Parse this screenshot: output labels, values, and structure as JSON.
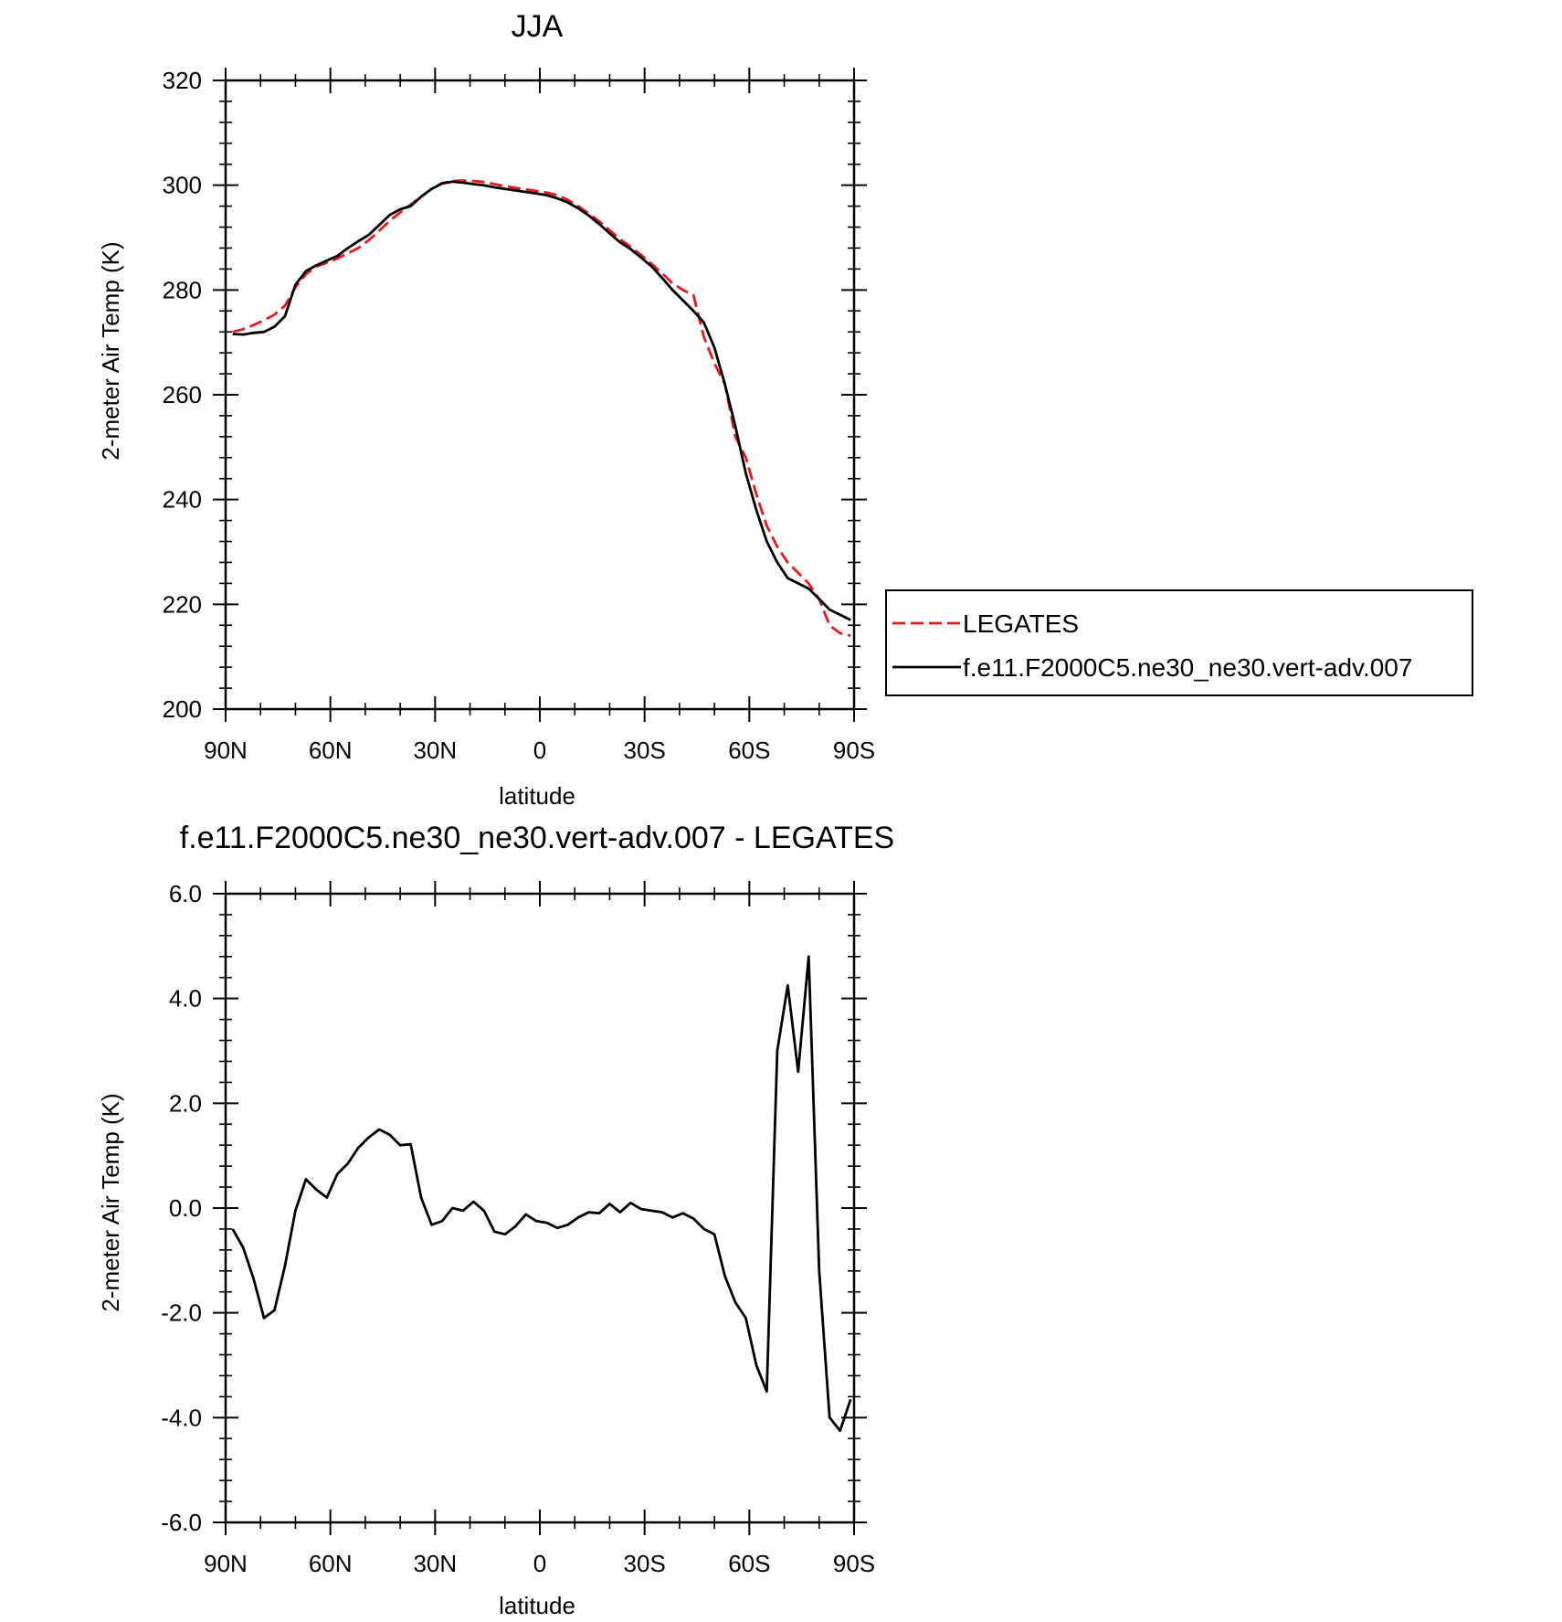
{
  "chart_data": [
    {
      "type": "line",
      "title": "JJA",
      "xlabel": "latitude",
      "ylabel": "2-meter Air Temp (K)",
      "xlim": [
        90,
        -90
      ],
      "ylim": [
        200,
        320
      ],
      "xticks": [
        90,
        60,
        30,
        0,
        -30,
        -60,
        -90
      ],
      "xtick_labels": [
        "90N",
        "60N",
        "30N",
        "0",
        "30S",
        "60S",
        "90S"
      ],
      "yticks": [
        200,
        220,
        240,
        260,
        280,
        300,
        320
      ],
      "ytick_labels": [
        "200",
        "220",
        "240",
        "260",
        "280",
        "300",
        "320"
      ],
      "legend": "outside-right",
      "grid": false,
      "series": [
        {
          "name": "LEGATES",
          "color": "#e41a1c",
          "style": "dashed",
          "x": [
            88,
            85,
            82,
            79,
            76,
            73,
            70,
            67,
            64,
            61,
            58,
            55,
            52,
            49,
            46,
            43,
            40,
            37,
            34,
            31,
            28,
            25,
            22,
            19,
            16,
            13,
            10,
            7,
            4,
            1,
            -2,
            -5,
            -8,
            -11,
            -14,
            -17,
            -20,
            -23,
            -26,
            -29,
            -32,
            -35,
            -38,
            -41,
            -44,
            -47,
            -50,
            -53,
            -56,
            -59,
            -62,
            -65,
            -68,
            -71,
            -74,
            -77,
            -80,
            -83,
            -86,
            -89
          ],
          "y": [
            272.0,
            272.5,
            273.3,
            274.2,
            275.3,
            277.0,
            280.5,
            283.0,
            284.5,
            285.2,
            286.0,
            287.0,
            288.0,
            289.5,
            291.3,
            293.2,
            294.8,
            296.3,
            297.8,
            299.3,
            300.4,
            300.8,
            300.9,
            300.8,
            300.6,
            300.2,
            299.8,
            299.5,
            299.2,
            298.9,
            298.6,
            298.1,
            297.2,
            296.0,
            294.6,
            293.1,
            291.4,
            289.7,
            288.2,
            286.7,
            285.0,
            283.2,
            281.3,
            280.0,
            279.0,
            271.0,
            266.0,
            262.0,
            252.0,
            248.0,
            241.0,
            235.0,
            231.0,
            228.0,
            226.0,
            224.0,
            221.0,
            216.0,
            214.5,
            214.0
          ]
        },
        {
          "name": "f.e11.F2000C5.ne30_ne30.vert-adv.007",
          "color": "#000000",
          "style": "solid",
          "x": [
            88,
            85,
            82,
            79,
            76,
            73,
            70,
            67,
            64,
            61,
            58,
            55,
            52,
            49,
            46,
            43,
            40,
            37,
            34,
            31,
            28,
            25,
            22,
            19,
            16,
            13,
            10,
            7,
            4,
            1,
            -2,
            -5,
            -8,
            -11,
            -14,
            -17,
            -20,
            -23,
            -26,
            -29,
            -32,
            -35,
            -38,
            -41,
            -44,
            -47,
            -50,
            -53,
            -56,
            -59,
            -62,
            -65,
            -68,
            -71,
            -74,
            -77,
            -80,
            -83,
            -86,
            -89
          ],
          "y": [
            271.6,
            271.5,
            271.8,
            272.0,
            273.0,
            275.0,
            281.0,
            283.6,
            284.7,
            285.6,
            286.5,
            288.0,
            289.3,
            290.5,
            292.4,
            294.3,
            295.4,
            296.0,
            297.8,
            299.3,
            300.3,
            300.7,
            300.5,
            300.2,
            300.0,
            299.6,
            299.3,
            299.0,
            298.7,
            298.4,
            298.1,
            297.5,
            296.7,
            295.6,
            294.2,
            292.6,
            290.8,
            289.1,
            287.8,
            286.2,
            284.5,
            282.3,
            280.0,
            278.0,
            276.0,
            273.8,
            269.0,
            262.0,
            254.0,
            245.0,
            238.0,
            232.0,
            228.0,
            225.0,
            224.0,
            223.0,
            221.0,
            219.0,
            218.0,
            217.0
          ]
        }
      ]
    },
    {
      "type": "line",
      "title": "f.e11.F2000C5.ne30_ne30.vert-adv.007 - LEGATES",
      "xlabel": "latitude",
      "ylabel": "2-meter Air Temp (K)",
      "xlim": [
        90,
        -90
      ],
      "ylim": [
        -6.0,
        6.0
      ],
      "xticks": [
        90,
        60,
        30,
        0,
        -30,
        -60,
        -90
      ],
      "xtick_labels": [
        "90N",
        "60N",
        "30N",
        "0",
        "30S",
        "60S",
        "90S"
      ],
      "yticks": [
        -6,
        -4,
        -2,
        0,
        2,
        4,
        6
      ],
      "ytick_labels": [
        "-6.0",
        "-4.0",
        "-2.0",
        "0.0",
        "2.0",
        "4.0",
        "6.0"
      ],
      "grid": false,
      "series": [
        {
          "color": "#000000",
          "style": "solid",
          "x": [
            88,
            85,
            82,
            79,
            76,
            73,
            70,
            67,
            64,
            61,
            58,
            55,
            52,
            49,
            46,
            43,
            40,
            37,
            34,
            31,
            28,
            25,
            22,
            19,
            16,
            13,
            10,
            7,
            4,
            1,
            -2,
            -5,
            -8,
            -11,
            -14,
            -17,
            -20,
            -23,
            -26,
            -29,
            -32,
            -35,
            -38,
            -41,
            -44,
            -47,
            -50,
            -53,
            -56,
            -59,
            -62,
            -65,
            -68,
            -71,
            -74,
            -77,
            -80,
            -83,
            -86,
            -89
          ],
          "y": [
            -0.4,
            -0.75,
            -1.35,
            -2.1,
            -1.95,
            -1.1,
            -0.05,
            0.55,
            0.35,
            0.2,
            0.65,
            0.85,
            1.15,
            1.35,
            1.5,
            1.4,
            1.2,
            1.22,
            0.2,
            -0.32,
            -0.25,
            0.0,
            -0.05,
            0.12,
            -0.05,
            -0.45,
            -0.5,
            -0.35,
            -0.12,
            -0.25,
            -0.28,
            -0.38,
            -0.32,
            -0.18,
            -0.08,
            -0.1,
            0.08,
            -0.08,
            0.1,
            -0.02,
            -0.05,
            -0.08,
            -0.18,
            -0.1,
            -0.2,
            -0.4,
            -0.5,
            -1.3,
            -1.8,
            -2.1,
            -3.0,
            -3.5,
            3.0,
            4.25,
            2.6,
            4.8,
            -1.2,
            -4.0,
            -4.25,
            -3.65
          ]
        }
      ]
    }
  ]
}
